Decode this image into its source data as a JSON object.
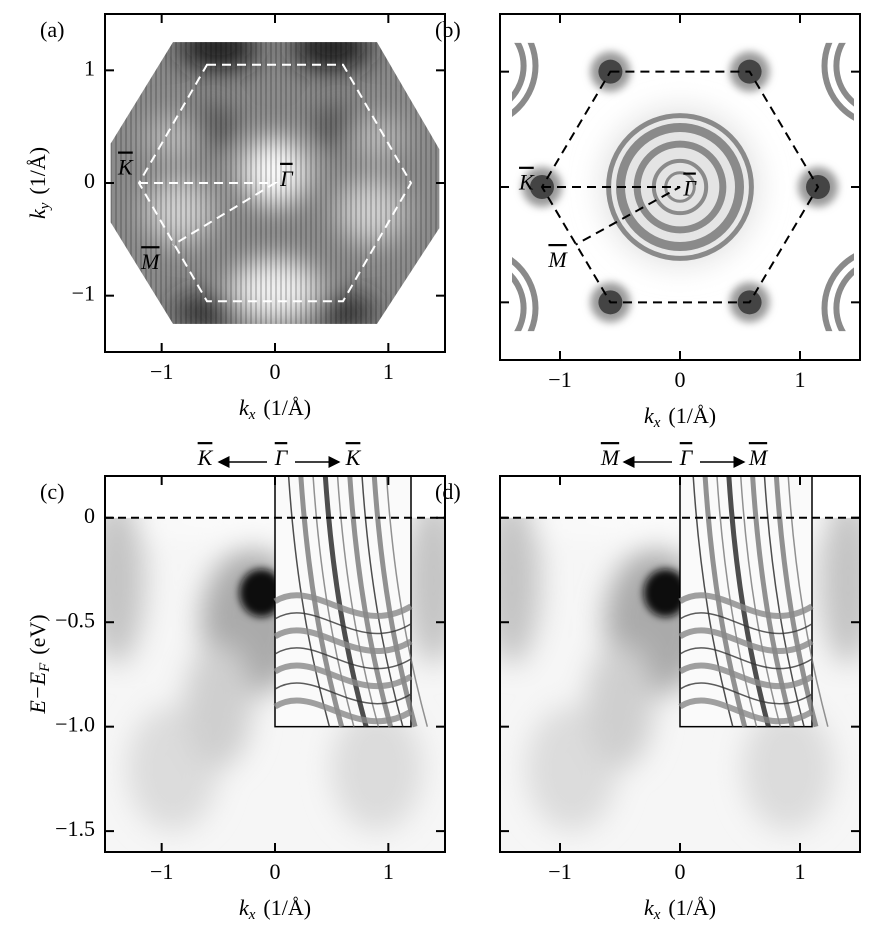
{
  "chart_data": [
    {
      "type": "image",
      "panel_label": "(a)",
      "x_label": {
        "symbol": "k",
        "sub": "x",
        "unit": "(1/Å)"
      },
      "y_label": {
        "symbol": "k",
        "sub": "y",
        "unit": "(1/Å)"
      },
      "xlim": [
        -1.5,
        1.5
      ],
      "ylim": [
        -1.5,
        1.5
      ],
      "xticks": [
        {
          "value": -1,
          "label": "−1"
        },
        0,
        1
      ],
      "yticks": [
        {
          "value": -1,
          "label": "−1"
        },
        0,
        1
      ],
      "ytick_labels": true,
      "annotations": [
        "K",
        "Γ",
        "M"
      ]
    },
    {
      "type": "image",
      "panel_label": "(b)",
      "x_label": {
        "symbol": "k",
        "sub": "x",
        "unit": "(1/Å)"
      },
      "xlim": [
        -1.5,
        1.5
      ],
      "ylim": [
        -1.5,
        1.5
      ],
      "xticks": [
        {
          "value": -1,
          "label": "−1"
        },
        0,
        1
      ],
      "yticks": [
        -1,
        0,
        1
      ],
      "ytick_labels": false,
      "annotations": [
        "K",
        "Γ",
        "M"
      ]
    },
    {
      "type": "image",
      "panel_label": "(c)",
      "x_label": {
        "symbol": "k",
        "sub": "x",
        "unit": "(1/Å)"
      },
      "y_label": {
        "symbol": "E−E",
        "sub": "F",
        "unit": "(eV)"
      },
      "xlim": [
        -1.5,
        1.5
      ],
      "ylim": [
        -1.6,
        0.2
      ],
      "xticks": [
        {
          "value": -1,
          "label": "−1"
        },
        0,
        1
      ],
      "yticks": [
        0,
        {
          "value": -0.5,
          "label": "−0.5"
        },
        {
          "value": -1,
          "label": "−1.0"
        },
        {
          "value": -1.5,
          "label": "−1.5"
        }
      ],
      "ytick_labels": true,
      "header": [
        "K",
        "Γ",
        "K"
      ]
    },
    {
      "type": "image",
      "panel_label": "(d)",
      "x_label": {
        "symbol": "k",
        "sub": "x",
        "unit": "(1/Å)"
      },
      "xlim": [
        -1.5,
        1.5
      ],
      "ylim": [
        -1.6,
        0.2
      ],
      "xticks": [
        {
          "value": -1,
          "label": "−1"
        },
        0,
        1
      ],
      "yticks": [
        0,
        -0.5,
        -1,
        -1.5
      ],
      "ytick_labels": false,
      "header": [
        "M",
        "Γ",
        "M"
      ]
    }
  ]
}
